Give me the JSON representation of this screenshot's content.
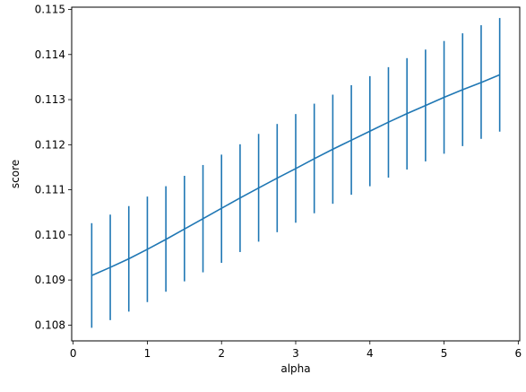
{
  "chart_data": {
    "type": "line",
    "title": "",
    "xlabel": "alpha",
    "ylabel": "score",
    "xlim": [
      -0.02,
      6.02
    ],
    "ylim": [
      0.10765,
      0.11505
    ],
    "xticks": [
      0,
      1,
      2,
      3,
      4,
      5,
      6
    ],
    "xtick_labels": [
      "0",
      "1",
      "2",
      "3",
      "4",
      "5",
      "6"
    ],
    "yticks": [
      0.108,
      0.109,
      0.11,
      0.111,
      0.112,
      0.113,
      0.114,
      0.115
    ],
    "ytick_labels": [
      "0.108",
      "0.109",
      "0.110",
      "0.111",
      "0.112",
      "0.113",
      "0.114",
      "0.115"
    ],
    "grid": false,
    "line_color": "#1f77b4",
    "series": [
      {
        "x": [
          0.25,
          0.5,
          0.75,
          1.0,
          1.25,
          1.5,
          1.75,
          2.0,
          2.25,
          2.5,
          2.75,
          3.0,
          3.25,
          3.5,
          3.75,
          4.0,
          4.25,
          4.5,
          4.75,
          5.0,
          5.25,
          5.5,
          5.75
        ],
        "y": [
          0.1091,
          0.10928,
          0.10947,
          0.10968,
          0.1099,
          0.11013,
          0.11036,
          0.11059,
          0.11082,
          0.11104,
          0.11126,
          0.11147,
          0.11169,
          0.1119,
          0.1121,
          0.1123,
          0.1125,
          0.11269,
          0.11287,
          0.11305,
          0.11322,
          0.11338,
          0.11355
        ],
        "err_low": [
          0.10794,
          0.10811,
          0.1083,
          0.10851,
          0.10874,
          0.10897,
          0.10917,
          0.10938,
          0.10962,
          0.10985,
          0.11006,
          0.11027,
          0.11048,
          0.11069,
          0.11089,
          0.11108,
          0.11127,
          0.11145,
          0.11163,
          0.1118,
          0.11197,
          0.11213,
          0.11229
        ],
        "err_high": [
          0.11026,
          0.11045,
          0.11064,
          0.11085,
          0.11108,
          0.11131,
          0.11155,
          0.11178,
          0.11201,
          0.11224,
          0.11246,
          0.11268,
          0.11291,
          0.11311,
          0.11332,
          0.11352,
          0.11372,
          0.11392,
          0.11411,
          0.1143,
          0.11447,
          0.11465,
          0.11481
        ]
      }
    ]
  }
}
